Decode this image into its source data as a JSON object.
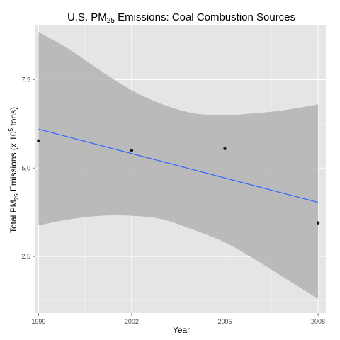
{
  "chart_data": {
    "type": "scatter",
    "title": {
      "prefix": "U.S. PM",
      "subscript": "25",
      "suffix": " Emissions: Coal Combustion Sources"
    },
    "xlabel": "Year",
    "ylabel": {
      "prefix": "Total PM",
      "subscript": "25",
      "middle": " Emissions (x 10",
      "superscript": "5",
      "suffix": " tons)"
    },
    "xlim": [
      1998.9,
      2008.25
    ],
    "ylim": [
      0.9,
      9.05
    ],
    "x_ticks": [
      1999,
      2002,
      2005,
      2008
    ],
    "x_tick_labels": [
      "1999",
      "2002",
      "2005",
      "2008"
    ],
    "y_ticks": [
      2.5,
      5.0,
      7.5
    ],
    "y_tick_labels": [
      "2.5",
      "5.0",
      "7.5"
    ],
    "grid": true,
    "points": [
      {
        "x": 1999,
        "y": 5.77
      },
      {
        "x": 2002,
        "y": 5.5
      },
      {
        "x": 2005,
        "y": 5.55
      },
      {
        "x": 2008,
        "y": 3.45
      }
    ],
    "fit_line": {
      "x": [
        1999,
        2008
      ],
      "y": [
        6.1,
        4.03
      ]
    },
    "confidence_band": {
      "x": [
        1999,
        2000,
        2001,
        2002,
        2003,
        2004,
        2005,
        2006,
        2007,
        2008
      ],
      "upper": [
        8.85,
        8.35,
        7.75,
        7.2,
        6.8,
        6.55,
        6.5,
        6.55,
        6.65,
        6.8
      ],
      "lower": [
        3.38,
        3.55,
        3.65,
        3.65,
        3.55,
        3.25,
        2.9,
        2.4,
        1.85,
        1.3
      ]
    },
    "colors": {
      "panel": "#e5e5e5",
      "grid_major": "#ffffff",
      "grid_minor": "#f2f2f2",
      "band": "#b3b3b3",
      "line": "#3366ff",
      "point": "#1a1a1a"
    }
  }
}
